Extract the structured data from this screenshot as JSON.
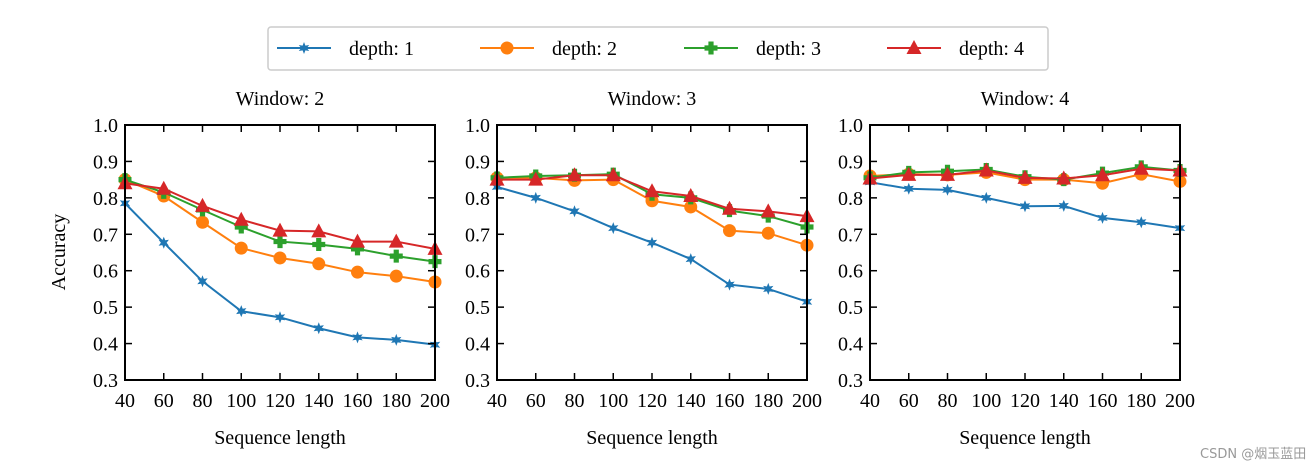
{
  "chart_data": [
    {
      "type": "line",
      "title": "Window: 2",
      "xlabel": "Sequence length",
      "ylabel": "Accuracy",
      "x": [
        40,
        60,
        80,
        100,
        120,
        140,
        160,
        180,
        200
      ],
      "xlim": [
        40,
        200
      ],
      "ylim": [
        0.3,
        1.0
      ],
      "xticks": [
        "40",
        "60",
        "80",
        "100",
        "120",
        "140",
        "160",
        "180",
        "200"
      ],
      "yticks": [
        "0.3",
        "0.4",
        "0.5",
        "0.6",
        "0.7",
        "0.8",
        "0.9",
        "1.0"
      ],
      "grid": false,
      "series": [
        {
          "name": "depth: 1",
          "values": [
            0.785,
            0.677,
            0.571,
            0.489,
            0.472,
            0.442,
            0.417,
            0.41,
            0.397
          ]
        },
        {
          "name": "depth: 2",
          "values": [
            0.85,
            0.805,
            0.733,
            0.662,
            0.635,
            0.619,
            0.596,
            0.585,
            0.569
          ]
        },
        {
          "name": "depth: 3",
          "values": [
            0.85,
            0.815,
            0.767,
            0.72,
            0.68,
            0.672,
            0.66,
            0.64,
            0.625
          ]
        },
        {
          "name": "depth: 4",
          "values": [
            0.84,
            0.825,
            0.778,
            0.74,
            0.71,
            0.708,
            0.68,
            0.68,
            0.66
          ]
        }
      ]
    },
    {
      "type": "line",
      "title": "Window: 3",
      "xlabel": "Sequence length",
      "ylabel": "",
      "x": [
        40,
        60,
        80,
        100,
        120,
        140,
        160,
        180,
        200
      ],
      "xlim": [
        40,
        200
      ],
      "ylim": [
        0.3,
        1.0
      ],
      "xticks": [
        "40",
        "60",
        "80",
        "100",
        "120",
        "140",
        "160",
        "180",
        "200"
      ],
      "yticks": [
        "0.3",
        "0.4",
        "0.5",
        "0.6",
        "0.7",
        "0.8",
        "0.9",
        "1.0"
      ],
      "grid": false,
      "series": [
        {
          "name": "depth: 1",
          "values": [
            0.83,
            0.8,
            0.763,
            0.717,
            0.677,
            0.632,
            0.562,
            0.55,
            0.515
          ]
        },
        {
          "name": "depth: 2",
          "values": [
            0.855,
            0.855,
            0.848,
            0.85,
            0.792,
            0.775,
            0.71,
            0.703,
            0.67
          ]
        },
        {
          "name": "depth: 3",
          "values": [
            0.855,
            0.86,
            0.862,
            0.865,
            0.81,
            0.8,
            0.765,
            0.75,
            0.72
          ]
        },
        {
          "name": "depth: 4",
          "values": [
            0.85,
            0.85,
            0.862,
            0.862,
            0.818,
            0.805,
            0.77,
            0.763,
            0.75
          ]
        }
      ]
    },
    {
      "type": "line",
      "title": "Window: 4",
      "xlabel": "Sequence length",
      "ylabel": "",
      "x": [
        40,
        60,
        80,
        100,
        120,
        140,
        160,
        180,
        200
      ],
      "xlim": [
        40,
        200
      ],
      "ylim": [
        0.3,
        1.0
      ],
      "xticks": [
        "40",
        "60",
        "80",
        "100",
        "120",
        "140",
        "160",
        "180",
        "200"
      ],
      "yticks": [
        "0.3",
        "0.4",
        "0.5",
        "0.6",
        "0.7",
        "0.8",
        "0.9",
        "1.0"
      ],
      "grid": false,
      "series": [
        {
          "name": "depth: 1",
          "values": [
            0.843,
            0.825,
            0.822,
            0.8,
            0.777,
            0.778,
            0.745,
            0.733,
            0.717
          ]
        },
        {
          "name": "depth: 2",
          "values": [
            0.86,
            0.865,
            0.863,
            0.87,
            0.85,
            0.85,
            0.84,
            0.865,
            0.845
          ]
        },
        {
          "name": "depth: 3",
          "values": [
            0.855,
            0.87,
            0.873,
            0.878,
            0.858,
            0.85,
            0.868,
            0.885,
            0.875
          ]
        },
        {
          "name": "depth: 4",
          "values": [
            0.853,
            0.863,
            0.863,
            0.875,
            0.855,
            0.853,
            0.862,
            0.88,
            0.875
          ]
        }
      ]
    }
  ],
  "legend": {
    "placement": "top-center",
    "entries": [
      {
        "label": "depth: 1",
        "color": "#1f77b4",
        "marker": "star"
      },
      {
        "label": "depth: 2",
        "color": "#ff7f0e",
        "marker": "circle"
      },
      {
        "label": "depth: 3",
        "color": "#2ca02c",
        "marker": "plus"
      },
      {
        "label": "depth: 4",
        "color": "#d62728",
        "marker": "triangle"
      }
    ]
  },
  "watermark": "CSDN @烟玉蓝田"
}
